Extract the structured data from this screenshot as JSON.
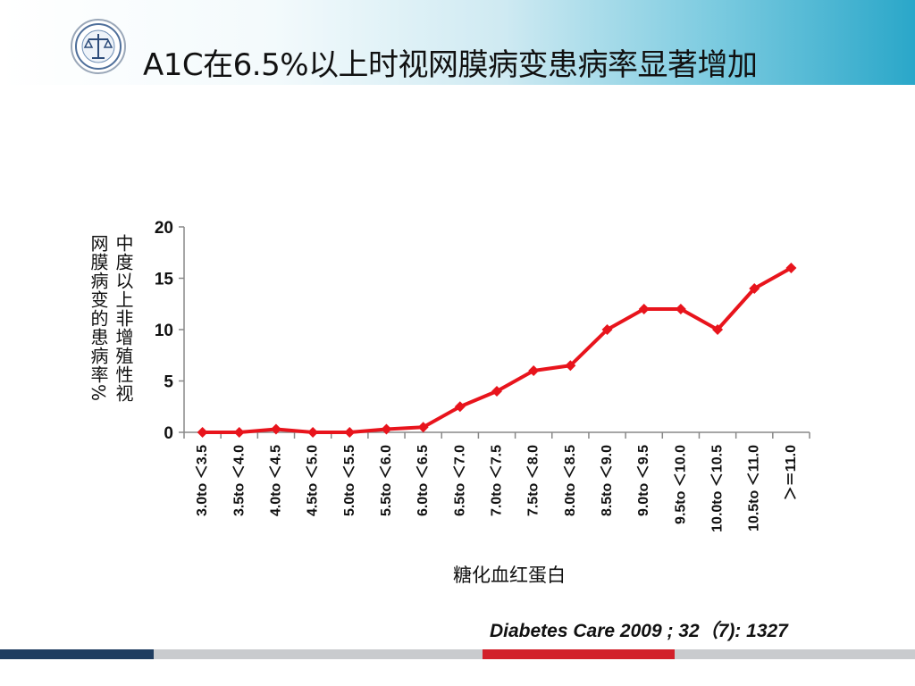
{
  "slide": {
    "title": "A1C在6.5%以上时视网膜病变患病率显著增加",
    "citation": "Diabetes Care 2009 ; 32（7): 1327"
  },
  "colors": {
    "series": "#e8141c",
    "footer_navy": "#1f3d60",
    "footer_gray": "#c9cbce",
    "footer_red": "#d2202a",
    "header_teal": "#2aa7c9"
  },
  "icons": {
    "logo": "scales-of-justice-icon"
  },
  "chart_data": {
    "type": "line",
    "title": "",
    "xlabel": "糖化血红蛋白",
    "ylabel_line1": "中度以上非增殖性视",
    "ylabel_line2": "网膜病变的患病率%",
    "ylim": [
      0,
      20
    ],
    "yticks": [
      0,
      5,
      10,
      15,
      20
    ],
    "grid": false,
    "categories": [
      "3.0to ＜3.5",
      "3.5to ＜4.0",
      "4.0to ＜4.5",
      "4.5to ＜5.0",
      "5.0to ＜5.5",
      "5.5to ＜6.0",
      "6.0to ＜6.5",
      "6.5to ＜7.0",
      "7.0to ＜7.5",
      "7.5to ＜8.0",
      "8.0to ＜8.5",
      "8.5to ＜9.0",
      "9.0to ＜9.5",
      "9.5to ＜10.0",
      "10.0to ＜10.5",
      "10.5to ＜11.0",
      "＞＝11.0"
    ],
    "series": [
      {
        "values": [
          0,
          0,
          0.3,
          0,
          0,
          0.3,
          0.5,
          2.5,
          4,
          6,
          6.5,
          10,
          12,
          12,
          10,
          14,
          16
        ]
      }
    ]
  }
}
